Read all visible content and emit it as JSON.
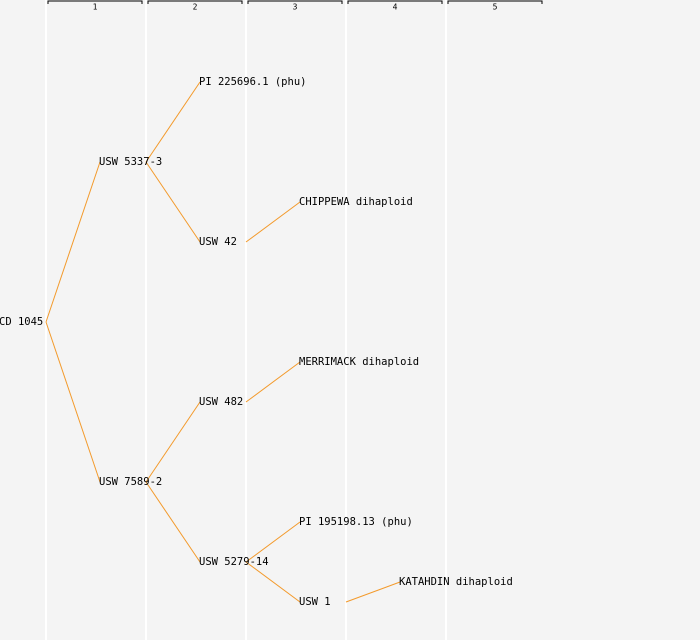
{
  "ruler": [
    "1",
    "2",
    "3",
    "4",
    "5"
  ],
  "nodes": [
    {
      "label": "CD 1045"
    },
    {
      "label": "USW 5337-3"
    },
    {
      "label": "USW 7589-2"
    },
    {
      "label": "PI 225696.1 (phu)"
    },
    {
      "label": "USW 42"
    },
    {
      "label": "USW 482"
    },
    {
      "label": "USW 5279-14"
    },
    {
      "label": "CHIPPEWA dihaploid"
    },
    {
      "label": "MERRIMACK dihaploid"
    },
    {
      "label": "PI 195198.13 (phu)"
    },
    {
      "label": "USW 1"
    },
    {
      "label": "KATAHDIN dihaploid"
    }
  ]
}
